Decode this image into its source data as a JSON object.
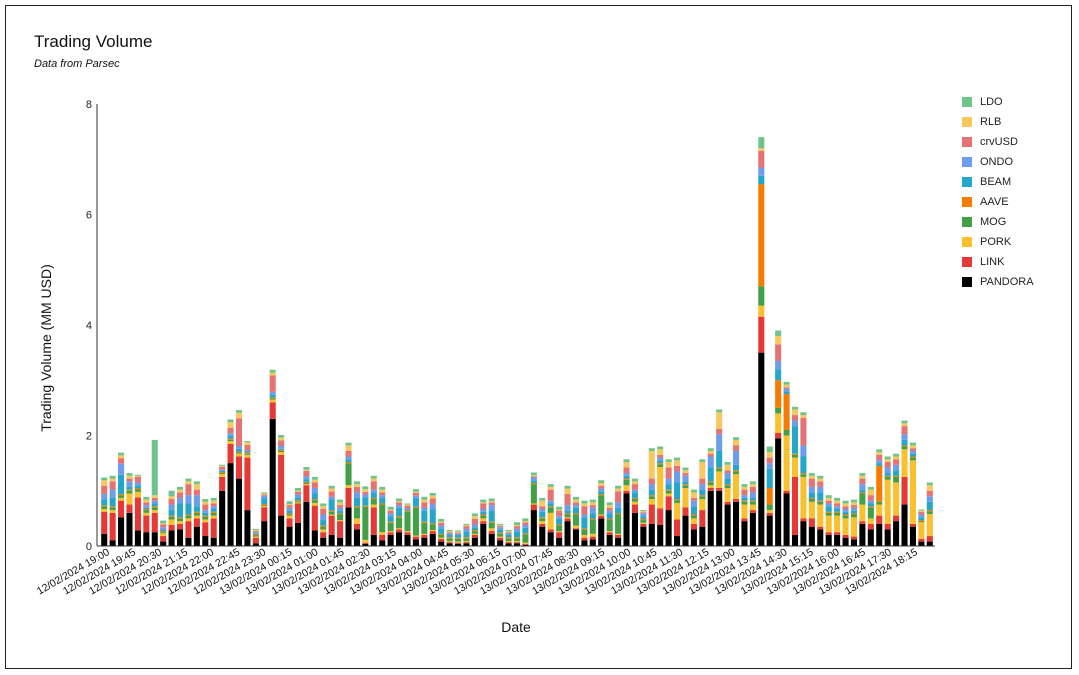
{
  "title": "Trading Volume",
  "subtitle": "Data from Parsec",
  "chart_data": {
    "type": "bar",
    "stacked": true,
    "xlabel": "Date",
    "ylabel": "Trading Volume (MM USD)",
    "ylim": [
      0,
      8
    ],
    "yticks": [
      0,
      2,
      4,
      6,
      8
    ],
    "grid": false,
    "legend_position": "right",
    "tick_labels": [
      "12/02/2024 19:00",
      "12/02/2024 19:45",
      "12/02/2024 20:30",
      "12/02/2024 21:15",
      "12/02/2024 22:00",
      "12/02/2024 22:45",
      "12/02/2024 23:30",
      "13/02/2024 00:15",
      "13/02/2024 01:00",
      "13/02/2024 01:45",
      "13/02/2024 02:30",
      "13/02/2024 03:15",
      "13/02/2024 04:00",
      "13/02/2024 04:45",
      "13/02/2024 05:30",
      "13/02/2024 06:15",
      "13/02/2024 07:00",
      "13/02/2024 07:45",
      "13/02/2024 08:30",
      "13/02/2024 09:15",
      "13/02/2024 10:00",
      "13/02/2024 10:45",
      "13/02/2024 11:30",
      "13/02/2024 12:15",
      "13/02/2024 13:00",
      "13/02/2024 13:45",
      "13/02/2024 14:30",
      "13/02/2024 15:15",
      "13/02/2024 16:00",
      "13/02/2024 16:45",
      "13/02/2024 17:30",
      "13/02/2024 18:15"
    ],
    "series": [
      {
        "name": "PANDORA",
        "color": "#000000",
        "values": [
          0.22,
          0.1,
          0.52,
          0.6,
          0.28,
          0.25,
          0.25,
          0.08,
          0.28,
          0.3,
          0.15,
          0.35,
          0.18,
          0.15,
          1.0,
          1.5,
          1.22,
          0.65,
          0.05,
          0.45,
          2.3,
          0.55,
          0.35,
          0.42,
          0.8,
          0.28,
          0.15,
          0.2,
          0.15,
          0.7,
          0.3,
          0.04,
          0.2,
          0.1,
          0.2,
          0.25,
          0.2,
          0.12,
          0.15,
          0.22,
          0.08,
          0.05,
          0.04,
          0.05,
          0.15,
          0.4,
          0.22,
          0.1,
          0.05,
          0.05,
          0.02,
          0.65,
          0.35,
          0.25,
          0.15,
          0.45,
          0.3,
          0.1,
          0.12,
          0.5,
          0.2,
          0.15,
          0.95,
          0.6,
          0.35,
          0.4,
          0.38,
          0.65,
          0.18,
          0.55,
          0.3,
          0.35,
          1.0,
          1.0,
          0.75,
          0.8,
          0.45,
          0.6,
          3.5,
          0.55,
          1.95,
          0.95,
          0.2,
          0.45,
          0.35,
          0.3,
          0.2,
          0.2,
          0.15,
          0.12,
          0.4,
          0.3,
          0.4,
          0.3,
          0.45,
          0.75,
          0.35,
          0.08,
          0.08
        ]
      },
      {
        "name": "LINK",
        "color": "#e53935",
        "values": [
          0.4,
          0.5,
          0.3,
          0.15,
          0.6,
          0.3,
          0.35,
          0.1,
          0.1,
          0.1,
          0.3,
          0.15,
          0.25,
          0.35,
          0.25,
          0.35,
          0.4,
          0.95,
          0.1,
          0.25,
          0.3,
          1.1,
          0.15,
          0.35,
          0.3,
          0.45,
          0.1,
          0.35,
          0.3,
          0.35,
          0.1,
          0.02,
          0.5,
          0.1,
          0.05,
          0.05,
          0.05,
          0.05,
          0.05,
          0.05,
          0.05,
          0.02,
          0.02,
          0.02,
          0.05,
          0.05,
          0.05,
          0.05,
          0.02,
          0.02,
          0.02,
          0.1,
          0.05,
          0.05,
          0.1,
          0.05,
          0.02,
          0.05,
          0.05,
          0.05,
          0.05,
          0.05,
          0.05,
          0.15,
          0.05,
          0.35,
          0.3,
          0.25,
          0.3,
          0.15,
          0.1,
          0.3,
          0.05,
          0.05,
          0.05,
          0.05,
          0.05,
          0.05,
          0.65,
          0.05,
          0.1,
          0.05,
          1.05,
          0.05,
          0.15,
          0.05,
          0.05,
          0.05,
          0.05,
          0.05,
          0.05,
          0.1,
          0.15,
          0.1,
          0.1,
          0.5,
          0.05,
          0.05,
          0.1
        ]
      },
      {
        "name": "PORK",
        "color": "#fbc02d",
        "values": [
          0.05,
          0.05,
          0.05,
          0.2,
          0.1,
          0.05,
          0.05,
          0.05,
          0.1,
          0.05,
          0.05,
          0.05,
          0.05,
          0.05,
          0.05,
          0.05,
          0.05,
          0.05,
          0.02,
          0.02,
          0.05,
          0.05,
          0.05,
          0.02,
          0.02,
          0.05,
          0.05,
          0.02,
          0.02,
          0.05,
          0.1,
          0.05,
          0.05,
          0.05,
          0.02,
          0.02,
          0.02,
          0.02,
          0.02,
          0.02,
          0.02,
          0.02,
          0.02,
          0.02,
          0.02,
          0.05,
          0.05,
          0.02,
          0.02,
          0.02,
          0.02,
          0.02,
          0.05,
          0.3,
          0.02,
          0.02,
          0.05,
          0.05,
          0.05,
          0.02,
          0.02,
          0.02,
          0.1,
          0.05,
          0.02,
          0.1,
          0.75,
          0.05,
          0.3,
          0.35,
          0.1,
          0.2,
          0.05,
          0.3,
          0.25,
          0.45,
          0.25,
          0.1,
          0.2,
          0.05,
          0.35,
          1.0,
          0.35,
          0.75,
          0.3,
          0.4,
          0.3,
          0.3,
          0.3,
          0.35,
          0.3,
          0.1,
          0.2,
          0.8,
          0.6,
          0.5,
          1.15,
          0.3,
          0.4
        ]
      },
      {
        "name": "MOG",
        "color": "#43a047",
        "values": [
          0.05,
          0.05,
          0.05,
          0.05,
          0.05,
          0.05,
          0.05,
          0.02,
          0.05,
          0.05,
          0.05,
          0.05,
          0.05,
          0.05,
          0.02,
          0.02,
          0.02,
          0.02,
          0.02,
          0.02,
          0.02,
          0.02,
          0.02,
          0.02,
          0.02,
          0.05,
          0.05,
          0.05,
          0.1,
          0.4,
          0.2,
          0.6,
          0.1,
          0.5,
          0.15,
          0.2,
          0.35,
          0.5,
          0.2,
          0.1,
          0.05,
          0.05,
          0.05,
          0.05,
          0.05,
          0.05,
          0.1,
          0.05,
          0.05,
          0.05,
          0.15,
          0.35,
          0.05,
          0.1,
          0.1,
          0.05,
          0.2,
          0.1,
          0.25,
          0.35,
          0.2,
          0.35,
          0.1,
          0.05,
          0.05,
          0.05,
          0.05,
          0.05,
          0.05,
          0.05,
          0.05,
          0.05,
          0.05,
          0.05,
          0.05,
          0.05,
          0.05,
          0.05,
          0.35,
          0.1,
          0.1,
          0.1,
          0.05,
          0.05,
          0.05,
          0.05,
          0.05,
          0.05,
          0.05,
          0.05,
          0.2,
          0.2,
          0.05,
          0.05,
          0.1,
          0.05,
          0.05,
          0.02,
          0.05
        ]
      },
      {
        "name": "AAVE",
        "color": "#f57c00",
        "values": [
          0.02,
          0.02,
          0.02,
          0.02,
          0.02,
          0.02,
          0.02,
          0.02,
          0.02,
          0.02,
          0.02,
          0.02,
          0.02,
          0.02,
          0.02,
          0.02,
          0.02,
          0.02,
          0.02,
          0.02,
          0.02,
          0.02,
          0.02,
          0.02,
          0.02,
          0.02,
          0.02,
          0.02,
          0.02,
          0.02,
          0.02,
          0.02,
          0.02,
          0.02,
          0.02,
          0.02,
          0.02,
          0.02,
          0.02,
          0.02,
          0.02,
          0.02,
          0.02,
          0.02,
          0.02,
          0.02,
          0.02,
          0.02,
          0.02,
          0.02,
          0.02,
          0.02,
          0.02,
          0.02,
          0.02,
          0.02,
          0.02,
          0.02,
          0.02,
          0.02,
          0.02,
          0.02,
          0.02,
          0.02,
          0.02,
          0.02,
          0.02,
          0.02,
          0.02,
          0.02,
          0.02,
          0.02,
          0.02,
          0.02,
          0.02,
          0.02,
          0.02,
          0.02,
          1.85,
          0.3,
          0.5,
          0.65,
          0.02,
          0.02,
          0.02,
          0.02,
          0.02,
          0.02,
          0.02,
          0.02,
          0.02,
          0.02,
          0.65,
          0.02,
          0.02,
          0.02,
          0.02,
          0.02,
          0.02
        ]
      },
      {
        "name": "BEAM",
        "color": "#26a6c8",
        "values": [
          0.1,
          0.15,
          0.35,
          0.05,
          0.05,
          0.02,
          0.05,
          0.02,
          0.1,
          0.25,
          0.2,
          0.1,
          0.05,
          0.05,
          0.02,
          0.05,
          0.05,
          0.02,
          0.02,
          0.1,
          0.05,
          0.02,
          0.05,
          0.05,
          0.05,
          0.1,
          0.1,
          0.2,
          0.05,
          0.05,
          0.15,
          0.15,
          0.1,
          0.1,
          0.1,
          0.15,
          0.02,
          0.15,
          0.2,
          0.25,
          0.1,
          0.05,
          0.05,
          0.1,
          0.05,
          0.05,
          0.2,
          0.05,
          0.05,
          0.1,
          0.1,
          0.05,
          0.1,
          0.05,
          0.1,
          0.05,
          0.1,
          0.2,
          0.1,
          0.05,
          0.1,
          0.1,
          0.05,
          0.1,
          0.05,
          0.1,
          0.05,
          0.1,
          0.3,
          0.05,
          0.15,
          0.1,
          0.25,
          0.3,
          0.1,
          0.1,
          0.05,
          0.05,
          0.15,
          0.35,
          0.2,
          0.05,
          0.5,
          0.3,
          0.1,
          0.15,
          0.1,
          0.05,
          0.05,
          0.05,
          0.05,
          0.05,
          0.05,
          0.05,
          0.1,
          0.1,
          0.05,
          0.05,
          0.15
        ]
      },
      {
        "name": "ONDO",
        "color": "#6d9eeb",
        "values": [
          0.1,
          0.15,
          0.2,
          0.1,
          0.05,
          0.05,
          0.05,
          0.05,
          0.1,
          0.1,
          0.15,
          0.2,
          0.05,
          0.05,
          0.02,
          0.05,
          0.05,
          0.02,
          0.02,
          0.05,
          0.05,
          0.05,
          0.05,
          0.05,
          0.05,
          0.1,
          0.1,
          0.05,
          0.05,
          0.05,
          0.1,
          0.05,
          0.05,
          0.05,
          0.05,
          0.05,
          0.02,
          0.05,
          0.05,
          0.1,
          0.05,
          0.02,
          0.02,
          0.05,
          0.05,
          0.05,
          0.1,
          0.05,
          0.02,
          0.05,
          0.05,
          0.05,
          0.05,
          0.05,
          0.05,
          0.1,
          0.05,
          0.05,
          0.1,
          0.05,
          0.05,
          0.1,
          0.05,
          0.05,
          0.05,
          0.1,
          0.05,
          0.1,
          0.2,
          0.1,
          0.1,
          0.1,
          0.2,
          0.3,
          0.1,
          0.25,
          0.05,
          0.1,
          0.15,
          0.1,
          0.15,
          0.05,
          0.1,
          0.2,
          0.1,
          0.1,
          0.05,
          0.05,
          0.05,
          0.05,
          0.1,
          0.05,
          0.05,
          0.1,
          0.1,
          0.1,
          0.05,
          0.05,
          0.1
        ]
      },
      {
        "name": "crvUSD",
        "color": "#e57373",
        "values": [
          0.15,
          0.15,
          0.1,
          0.05,
          0.1,
          0.05,
          0.05,
          0.05,
          0.1,
          0.1,
          0.2,
          0.1,
          0.1,
          0.05,
          0.05,
          0.1,
          0.5,
          0.1,
          0.02,
          0.02,
          0.3,
          0.1,
          0.05,
          0.05,
          0.1,
          0.1,
          0.1,
          0.1,
          0.05,
          0.1,
          0.1,
          0.05,
          0.15,
          0.05,
          0.05,
          0.05,
          0.05,
          0.05,
          0.1,
          0.1,
          0.05,
          0.02,
          0.02,
          0.05,
          0.1,
          0.1,
          0.05,
          0.02,
          0.02,
          0.05,
          0.05,
          0.02,
          0.05,
          0.2,
          0.1,
          0.2,
          0.05,
          0.15,
          0.05,
          0.05,
          0.05,
          0.2,
          0.1,
          0.1,
          0.02,
          0.1,
          0.05,
          0.2,
          0.1,
          0.05,
          0.05,
          0.1,
          0.05,
          0.1,
          0.05,
          0.1,
          0.1,
          0.1,
          0.3,
          0.1,
          0.3,
          0.02,
          0.1,
          0.5,
          0.15,
          0.1,
          0.05,
          0.05,
          0.05,
          0.05,
          0.1,
          0.1,
          0.1,
          0.1,
          0.1,
          0.15,
          0.05,
          0.05,
          0.1
        ]
      },
      {
        "name": "RLB",
        "color": "#f6c85f",
        "values": [
          0.1,
          0.05,
          0.05,
          0.05,
          0.02,
          0.05,
          0.05,
          0.02,
          0.05,
          0.05,
          0.05,
          0.1,
          0.05,
          0.05,
          0.02,
          0.1,
          0.1,
          0.05,
          0.02,
          0.02,
          0.05,
          0.05,
          0.02,
          0.02,
          0.02,
          0.05,
          0.05,
          0.05,
          0.05,
          0.1,
          0.05,
          0.05,
          0.05,
          0.05,
          0.02,
          0.02,
          0.02,
          0.02,
          0.05,
          0.05,
          0.02,
          0.02,
          0.02,
          0.02,
          0.05,
          0.02,
          0.02,
          0.02,
          0.02,
          0.02,
          0.02,
          0.02,
          0.1,
          0.05,
          0.02,
          0.1,
          0.05,
          0.05,
          0.05,
          0.05,
          0.05,
          0.05,
          0.1,
          0.05,
          0.02,
          0.5,
          0.1,
          0.1,
          0.1,
          0.05,
          0.1,
          0.3,
          0.05,
          0.3,
          0.1,
          0.1,
          0.05,
          0.05,
          0.05,
          0.1,
          0.15,
          0.05,
          0.1,
          0.05,
          0.05,
          0.05,
          0.05,
          0.05,
          0.05,
          0.05,
          0.05,
          0.1,
          0.05,
          0.05,
          0.05,
          0.05,
          0.05,
          0.02,
          0.1
        ]
      },
      {
        "name": "LDO",
        "color": "#6fc48b",
        "values": [
          0.05,
          0.05,
          0.05,
          0.05,
          0.02,
          0.05,
          1.0,
          0.05,
          0.1,
          0.05,
          0.05,
          0.05,
          0.05,
          0.05,
          0.02,
          0.05,
          0.05,
          0.02,
          0.02,
          0.02,
          0.05,
          0.05,
          0.05,
          0.05,
          0.05,
          0.05,
          0.05,
          0.05,
          0.05,
          0.05,
          0.05,
          0.05,
          0.05,
          0.05,
          0.05,
          0.05,
          0.02,
          0.05,
          0.05,
          0.05,
          0.05,
          0.02,
          0.02,
          0.02,
          0.05,
          0.05,
          0.05,
          0.02,
          0.02,
          0.05,
          0.05,
          0.05,
          0.05,
          0.05,
          0.05,
          0.05,
          0.05,
          0.05,
          0.05,
          0.05,
          0.05,
          0.05,
          0.05,
          0.05,
          0.02,
          0.05,
          0.05,
          0.05,
          0.05,
          0.05,
          0.05,
          0.05,
          0.05,
          0.05,
          0.05,
          0.05,
          0.05,
          0.05,
          0.2,
          0.1,
          0.1,
          0.05,
          0.05,
          0.05,
          0.05,
          0.05,
          0.05,
          0.05,
          0.05,
          0.05,
          0.05,
          0.05,
          0.05,
          0.05,
          0.05,
          0.05,
          0.05,
          0.02,
          0.05
        ]
      }
    ]
  }
}
